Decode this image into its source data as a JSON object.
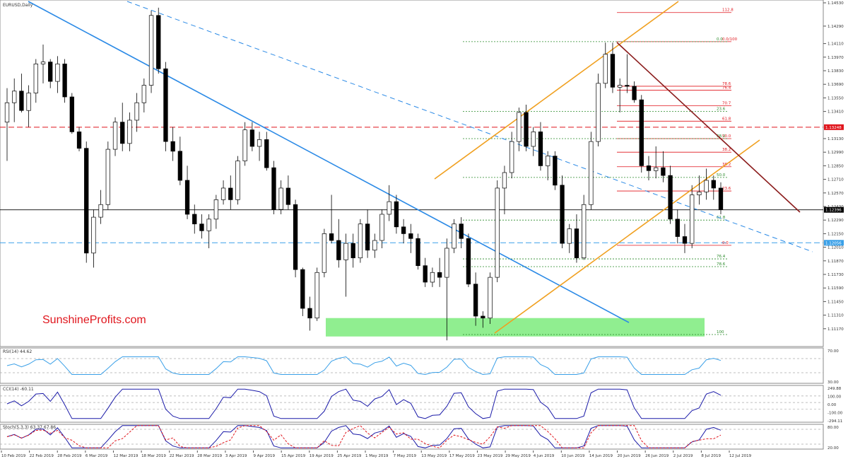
{
  "chart_data": {
    "type": "candlestick",
    "title": "EURUSD,Daily",
    "watermark": "SunshineProfits.com",
    "colors": {
      "bull": "#ffffff",
      "bear": "#000000",
      "resistance_dashed": "#e0161d",
      "support_dashed": "#3aa0e8",
      "trendline_blue": "#2b8ae6",
      "channel": "#f0a020",
      "down_line": "#8b1c1c",
      "fib_red": "#e0161d",
      "fib_green": "#2a8a2a",
      "green_zone": "#90ee90"
    },
    "y_ticks": [
      1.1453,
      1.1429,
      1.1411,
      1.1397,
      1.1383,
      1.1369,
      1.1355,
      1.1341,
      1.1313,
      1.1299,
      1.1285,
      1.1271,
      1.1257,
      1.1243,
      1.1229,
      1.1215,
      1.1201,
      1.1187,
      1.1173,
      1.1159,
      1.1145,
      1.1131,
      1.1117
    ],
    "y_tick_labels": [
      "1.14530",
      "1.14290",
      "1.14110",
      "1.13970",
      "1.13830",
      "1.13690",
      "1.13550",
      "1.13410",
      "1.13130",
      "1.12990",
      "1.12850",
      "1.12710",
      "1.12570",
      "1.12430",
      "1.12290",
      "1.12150",
      "1.12010",
      "1.11870",
      "1.11730",
      "1.11590",
      "1.11450",
      "1.11310",
      "1.11170"
    ],
    "x_labels": [
      "10 Feb 2019",
      "22 Feb 2019",
      "28 Feb 2019",
      "6 Mar 2019",
      "12 Mar 2019",
      "18 Mar 2019",
      "22 Mar 2019",
      "28 Mar 2019",
      "3 Apr 2019",
      "9 Apr 2019",
      "15 Apr 2019",
      "19 Apr 2019",
      "25 Apr 2019",
      "1 May 2019",
      "7 May 2019",
      "13 May 2019",
      "17 May 2019",
      "23 May 2019",
      "29 May 2019",
      "4 Jun 2019",
      "10 Jun 2019",
      "14 Jun 2019",
      "20 Jun 2019",
      "26 Jun 2019",
      "2 Jul 2019",
      "8 Jul 2019",
      "12 Jul 2019"
    ],
    "price_tags": [
      {
        "value": 1.13248,
        "label": "1.13248",
        "color": "#e0161d"
      },
      {
        "value": 1.12396,
        "label": "1.12396",
        "color": "#000000"
      },
      {
        "value": 1.12056,
        "label": "1.12056",
        "color": "#3aa0e8"
      }
    ],
    "fib_red_labels": [
      "112.8",
      "0.0/100",
      "78.6",
      "76.4",
      "70.7",
      "61.8",
      "50.0",
      "38.2",
      "38.2",
      "23.6",
      "0.0"
    ],
    "fib_red_values": [
      1.1443,
      1.1413,
      1.1367,
      1.1363,
      1.1347,
      1.1331,
      1.1313,
      1.1299,
      1.1284,
      1.1259,
      1.1203
    ],
    "fib_green_labels": [
      "0.0",
      "23.6",
      "38.2",
      "50.0",
      "61.8",
      "76.4",
      "78.6",
      "100"
    ],
    "fib_green_values": [
      1.1413,
      1.1341,
      1.1313,
      1.1273,
      1.1229,
      1.1189,
      1.1181,
      1.1111
    ],
    "green_zone": {
      "from": 1.1109,
      "to": 1.1128
    },
    "candles": [
      [
        1.133,
        1.1365,
        1.129,
        1.135
      ],
      [
        1.135,
        1.1375,
        1.133,
        1.1362
      ],
      [
        1.1362,
        1.138,
        1.134,
        1.1342
      ],
      [
        1.1342,
        1.1368,
        1.1325,
        1.136
      ],
      [
        1.136,
        1.1395,
        1.135,
        1.139
      ],
      [
        1.139,
        1.141,
        1.137,
        1.1392
      ],
      [
        1.1392,
        1.1395,
        1.1365,
        1.1372
      ],
      [
        1.1372,
        1.1398,
        1.136,
        1.139
      ],
      [
        1.139,
        1.1395,
        1.135,
        1.1356
      ],
      [
        1.1356,
        1.136,
        1.1318,
        1.132
      ],
      [
        1.132,
        1.1325,
        1.13,
        1.1303
      ],
      [
        1.1303,
        1.131,
        1.1185,
        1.1195
      ],
      [
        1.1195,
        1.124,
        1.118,
        1.1232
      ],
      [
        1.1232,
        1.126,
        1.1225,
        1.1245
      ],
      [
        1.1245,
        1.131,
        1.124,
        1.1302
      ],
      [
        1.1302,
        1.1335,
        1.1295,
        1.133
      ],
      [
        1.133,
        1.135,
        1.13,
        1.1308
      ],
      [
        1.1308,
        1.134,
        1.13,
        1.1332
      ],
      [
        1.1332,
        1.136,
        1.132,
        1.135
      ],
      [
        1.135,
        1.1375,
        1.134,
        1.1368
      ],
      [
        1.1368,
        1.1445,
        1.136,
        1.144
      ],
      [
        1.144,
        1.1448,
        1.138,
        1.1385
      ],
      [
        1.1385,
        1.1392,
        1.13,
        1.131
      ],
      [
        1.131,
        1.1325,
        1.129,
        1.13
      ],
      [
        1.13,
        1.1315,
        1.1265,
        1.127
      ],
      [
        1.127,
        1.1285,
        1.123,
        1.1235
      ],
      [
        1.1235,
        1.1245,
        1.1215,
        1.1225
      ],
      [
        1.1225,
        1.1235,
        1.121,
        1.1218
      ],
      [
        1.1218,
        1.1235,
        1.12,
        1.123
      ],
      [
        1.123,
        1.1255,
        1.122,
        1.125
      ],
      [
        1.125,
        1.127,
        1.1245,
        1.1262
      ],
      [
        1.1262,
        1.1275,
        1.124,
        1.125
      ],
      [
        1.125,
        1.1295,
        1.1245,
        1.129
      ],
      [
        1.129,
        1.133,
        1.1285,
        1.1322
      ],
      [
        1.1322,
        1.133,
        1.13,
        1.1305
      ],
      [
        1.1305,
        1.132,
        1.129,
        1.1312
      ],
      [
        1.1312,
        1.132,
        1.128,
        1.1283
      ],
      [
        1.1283,
        1.129,
        1.1235,
        1.124
      ],
      [
        1.124,
        1.127,
        1.1235,
        1.1262
      ],
      [
        1.1262,
        1.1275,
        1.124,
        1.1245
      ],
      [
        1.1245,
        1.125,
        1.117,
        1.1178
      ],
      [
        1.1178,
        1.118,
        1.113,
        1.1138
      ],
      [
        1.1138,
        1.115,
        1.1115,
        1.1128
      ],
      [
        1.1128,
        1.118,
        1.1125,
        1.1175
      ],
      [
        1.1175,
        1.122,
        1.117,
        1.1215
      ],
      [
        1.1215,
        1.1255,
        1.1205,
        1.1208
      ],
      [
        1.1208,
        1.123,
        1.118,
        1.1188
      ],
      [
        1.1188,
        1.1215,
        1.115,
        1.1205
      ],
      [
        1.1205,
        1.1215,
        1.118,
        1.119
      ],
      [
        1.119,
        1.123,
        1.1185,
        1.1225
      ],
      [
        1.1225,
        1.124,
        1.119,
        1.1198
      ],
      [
        1.1198,
        1.1215,
        1.119,
        1.1208
      ],
      [
        1.1208,
        1.124,
        1.12,
        1.1235
      ],
      [
        1.1235,
        1.1265,
        1.1228,
        1.1248
      ],
      [
        1.1248,
        1.1255,
        1.1215,
        1.1222
      ],
      [
        1.1222,
        1.123,
        1.1205,
        1.1215
      ],
      [
        1.1215,
        1.1225,
        1.1195,
        1.121
      ],
      [
        1.121,
        1.1215,
        1.1178,
        1.1182
      ],
      [
        1.1182,
        1.119,
        1.116,
        1.1165
      ],
      [
        1.1165,
        1.118,
        1.116,
        1.1175
      ],
      [
        1.1175,
        1.119,
        1.116,
        1.117
      ],
      [
        1.117,
        1.121,
        1.1105,
        1.12
      ],
      [
        1.12,
        1.123,
        1.1195,
        1.1225
      ],
      [
        1.1225,
        1.1232,
        1.12,
        1.121
      ],
      [
        1.121,
        1.1215,
        1.116,
        1.1163
      ],
      [
        1.1163,
        1.1175,
        1.112,
        1.113
      ],
      [
        1.113,
        1.1135,
        1.1118,
        1.1128
      ],
      [
        1.1128,
        1.1175,
        1.1122,
        1.117
      ],
      [
        1.117,
        1.127,
        1.1165,
        1.1262
      ],
      [
        1.1262,
        1.1285,
        1.1235,
        1.1278
      ],
      [
        1.1278,
        1.132,
        1.1272,
        1.131
      ],
      [
        1.131,
        1.1345,
        1.13,
        1.134
      ],
      [
        1.134,
        1.1348,
        1.13,
        1.1305
      ],
      [
        1.1305,
        1.1325,
        1.1295,
        1.132
      ],
      [
        1.132,
        1.133,
        1.128,
        1.1285
      ],
      [
        1.1285,
        1.13,
        1.127,
        1.1295
      ],
      [
        1.1295,
        1.13,
        1.126,
        1.1265
      ],
      [
        1.1265,
        1.1275,
        1.12,
        1.1205
      ],
      [
        1.1205,
        1.1225,
        1.1195,
        1.122
      ],
      [
        1.122,
        1.1235,
        1.1185,
        1.119
      ],
      [
        1.119,
        1.1255,
        1.1188,
        1.1245
      ],
      [
        1.1245,
        1.132,
        1.124,
        1.131
      ],
      [
        1.131,
        1.138,
        1.1305,
        1.137
      ],
      [
        1.137,
        1.1412,
        1.1365,
        1.14
      ],
      [
        1.14,
        1.1412,
        1.136,
        1.1366
      ],
      [
        1.1366,
        1.1375,
        1.134,
        1.1368
      ],
      [
        1.1368,
        1.14,
        1.136,
        1.1367
      ],
      [
        1.1367,
        1.1372,
        1.135,
        1.1353
      ],
      [
        1.1353,
        1.1358,
        1.1278,
        1.1285
      ],
      [
        1.1285,
        1.1295,
        1.127,
        1.128
      ],
      [
        1.128,
        1.1305,
        1.1272,
        1.1283
      ],
      [
        1.1283,
        1.13,
        1.1268,
        1.1275
      ],
      [
        1.1275,
        1.1285,
        1.1225,
        1.123
      ],
      [
        1.123,
        1.124,
        1.1205,
        1.1212
      ],
      [
        1.1212,
        1.1225,
        1.1195,
        1.1205
      ],
      [
        1.1205,
        1.1265,
        1.12,
        1.1255
      ],
      [
        1.1255,
        1.1275,
        1.1245,
        1.1258
      ],
      [
        1.1258,
        1.1282,
        1.125,
        1.127
      ],
      [
        1.127,
        1.1275,
        1.125,
        1.1262
      ],
      [
        1.1262,
        1.1268,
        1.1235,
        1.124
      ]
    ],
    "rsi": {
      "label": "RSI(14) 44.62",
      "ticks": [
        "70.00",
        "30.00"
      ],
      "levels": [
        70,
        30
      ]
    },
    "cci": {
      "label": "CCI(14) -60.11",
      "ticks": [
        "249.88",
        "100.00",
        "0.00",
        "-100.00",
        "-294.11"
      ],
      "levels": [
        100,
        0,
        -100
      ]
    },
    "stoch": {
      "label": "Stoch(5,3,3) 63.37 67.86",
      "ticks": [
        "80.00",
        "20.00"
      ],
      "levels": [
        80,
        20
      ]
    }
  }
}
